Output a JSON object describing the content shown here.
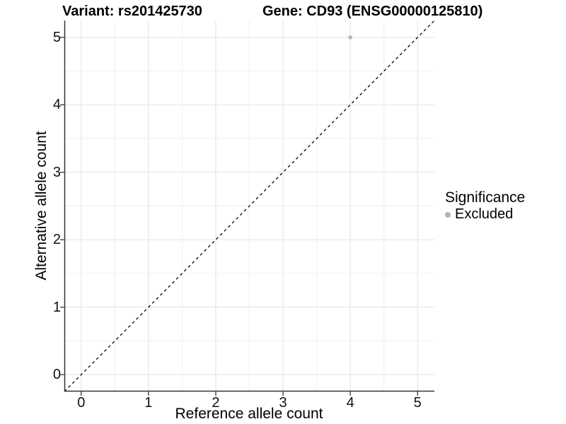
{
  "titles": {
    "variant": "Variant: rs201425730",
    "gene": "Gene: CD93 (ENSG00000125810)"
  },
  "axes": {
    "x_label": "Reference allele count",
    "y_label": "Alternative allele count",
    "x_ticks": [
      "0",
      "1",
      "2",
      "3",
      "4",
      "5"
    ],
    "y_ticks": [
      "0",
      "1",
      "2",
      "3",
      "4",
      "5"
    ]
  },
  "legend": {
    "title": "Significance",
    "items": [
      {
        "label": "Excluded",
        "color": "#b3b3b3"
      }
    ]
  },
  "colors": {
    "background": "#ffffff",
    "grid_major": "#e3e3e3",
    "grid_minor": "#efefef",
    "axis_line": "#333333",
    "text": "#000000",
    "point": "#b3b3b3",
    "reference_line": "#000000"
  },
  "chart_data": {
    "type": "scatter",
    "title": "Variant: rs201425730 | Gene: CD93 (ENSG00000125810)",
    "xlabel": "Reference allele count",
    "ylabel": "Alternative allele count",
    "xlim": [
      -0.25,
      5.25
    ],
    "ylim": [
      -0.25,
      5.25
    ],
    "x_ticks": [
      0,
      1,
      2,
      3,
      4,
      5
    ],
    "y_ticks": [
      0,
      1,
      2,
      3,
      4,
      5
    ],
    "grid": "major+minor",
    "legend_position": "right",
    "legend_title": "Significance",
    "series": [
      {
        "name": "Excluded",
        "color": "#b3b3b3",
        "points": [
          {
            "x": 4,
            "y": 5
          }
        ]
      }
    ],
    "reference_line": {
      "type": "identity",
      "style": "dashed",
      "from": [
        -0.25,
        -0.25
      ],
      "to": [
        5.25,
        5.25
      ],
      "color": "#000000"
    }
  }
}
